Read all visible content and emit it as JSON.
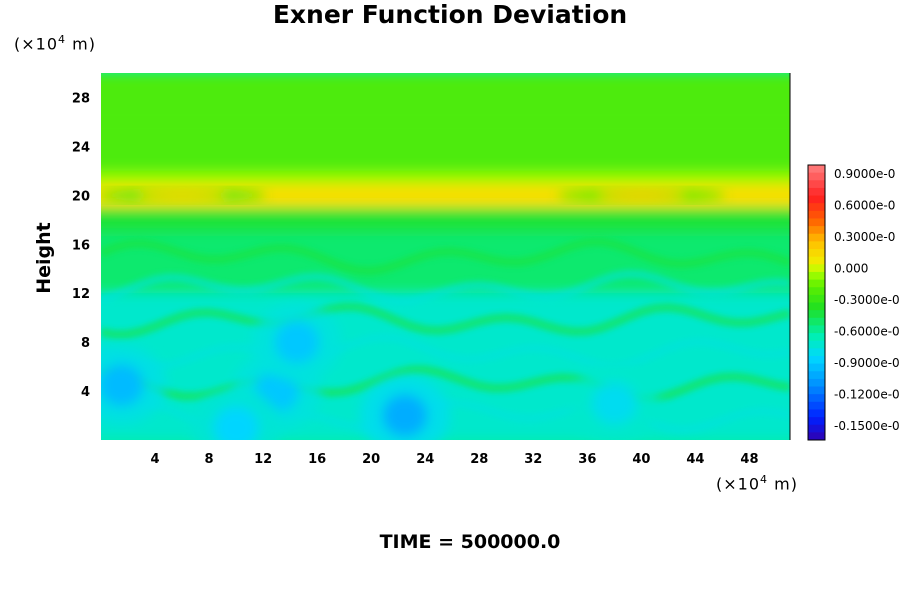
{
  "chart_data": {
    "type": "heatmap",
    "title": "Exner Function Deviation",
    "ylabel": "Height",
    "y_unit": {
      "prefix": "(×10",
      "exp": "4",
      "suffix": " m)"
    },
    "x_unit": {
      "prefix": "(×10",
      "exp": "4",
      "suffix": " m)"
    },
    "footer": "TIME = 500000.0",
    "xlim": [
      0,
      51
    ],
    "ylim": [
      0,
      30
    ],
    "x_ticks": [
      "4",
      "8",
      "12",
      "16",
      "20",
      "24",
      "28",
      "32",
      "36",
      "40",
      "44",
      "48"
    ],
    "y_ticks": [
      "4",
      "8",
      "12",
      "16",
      "20",
      "24",
      "28"
    ],
    "colorbar_labels": [
      "0.9000e-0",
      "0.6000e-0",
      "0.3000e-0",
      "0.000",
      "-0.3000e-0",
      "-0.6000e-0",
      "-0.9000e-0",
      "-0.1200e-0",
      "-0.1500e-0"
    ],
    "colorbar_range": [
      -0.165,
      0.105
    ],
    "field": {
      "background": -0.06,
      "bands": [
        {
          "y": [
            26,
            30
          ],
          "value": -0.02
        },
        {
          "y": [
            22,
            26
          ],
          "value": -0.02
        },
        {
          "y": [
            21,
            22
          ],
          "value": -0.005
        },
        {
          "y": [
            19,
            21
          ],
          "value": 0.015
        },
        {
          "y": [
            17,
            19
          ],
          "value": -0.04
        },
        {
          "y": [
            12,
            17
          ],
          "value": -0.05
        },
        {
          "y": [
            0,
            12
          ],
          "value": -0.07
        }
      ],
      "local_features": [
        {
          "x": 1.5,
          "y": 4.5,
          "value": -0.095
        },
        {
          "x": 13,
          "y": 4,
          "value": -0.09
        },
        {
          "x": 14.5,
          "y": 8,
          "value": -0.09
        },
        {
          "x": 22.5,
          "y": 2,
          "value": -0.1
        },
        {
          "x": 38,
          "y": 3,
          "value": -0.08
        },
        {
          "x": 10,
          "y": 1,
          "value": -0.085
        },
        {
          "x": 40,
          "y": 20,
          "value": 0.025
        },
        {
          "x": 6,
          "y": 20,
          "value": 0.02
        }
      ]
    },
    "colors": {
      "background": "#a6f000",
      "upper": "#aaff00",
      "band_yellow": "#f5f500",
      "lower": "#44e600",
      "cyan": "#00f5c8"
    }
  }
}
